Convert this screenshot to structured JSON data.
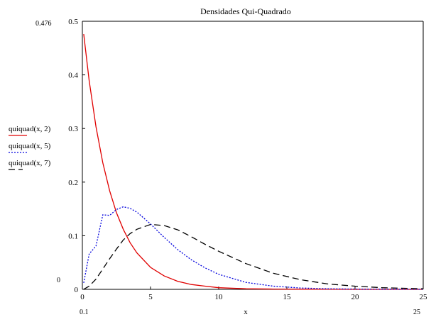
{
  "chart_data": {
    "type": "line",
    "title": "Densidades Qui-Quadrado",
    "xlabel": "x",
    "ylabel": "",
    "xlim": [
      0,
      25
    ],
    "ylim": [
      0,
      0.5
    ],
    "x_ticks": [
      0,
      5,
      10,
      15,
      20,
      25
    ],
    "y_ticks": [
      0,
      0.1,
      0.2,
      0.3,
      0.4,
      0.5
    ],
    "range_annotations": {
      "y_max": "0.476",
      "y_min": "0",
      "x_min": "0.1",
      "x_max": "25"
    },
    "grid": false,
    "legend_position": "left",
    "series": [
      {
        "name": "quiquad(x, 2)",
        "color": "#e00000",
        "dash": "solid",
        "df": 2,
        "x": [
          0.1,
          0.5,
          1,
          1.5,
          2,
          2.5,
          3,
          3.5,
          4,
          5,
          6,
          7,
          8,
          9,
          10,
          12,
          14,
          16,
          18,
          20,
          22,
          25
        ],
        "y": [
          0.476,
          0.389,
          0.303,
          0.236,
          0.184,
          0.143,
          0.112,
          0.087,
          0.068,
          0.041,
          0.025,
          0.015,
          0.009,
          0.006,
          0.003,
          0.001,
          0.0005,
          0.0002,
          0.0001,
          0.0,
          0.0,
          0.0
        ]
      },
      {
        "name": "quiquad(x, 5)",
        "color": "#0000dd",
        "dash": "dotted",
        "df": 5,
        "x": [
          0.1,
          0.5,
          1,
          1.5,
          2,
          2.5,
          3,
          3.5,
          4,
          5,
          6,
          7,
          8,
          9,
          10,
          12,
          14,
          16,
          18,
          20,
          22,
          25
        ],
        "y": [
          0.012,
          0.066,
          0.081,
          0.139,
          0.138,
          0.149,
          0.154,
          0.151,
          0.144,
          0.122,
          0.097,
          0.074,
          0.055,
          0.04,
          0.028,
          0.013,
          0.006,
          0.0025,
          0.0011,
          0.0005,
          0.0002,
          0.0001
        ]
      },
      {
        "name": "quiquad(x, 7)",
        "color": "#000000",
        "dash": "dashed",
        "df": 7,
        "x": [
          0.1,
          0.5,
          1,
          1.5,
          2,
          2.5,
          3,
          3.5,
          4,
          5,
          6,
          7,
          8,
          9,
          10,
          12,
          14,
          16,
          18,
          20,
          22,
          25
        ],
        "y": [
          0.0001,
          0.006,
          0.019,
          0.038,
          0.057,
          0.075,
          0.092,
          0.104,
          0.112,
          0.121,
          0.119,
          0.111,
          0.098,
          0.084,
          0.071,
          0.048,
          0.03,
          0.018,
          0.01,
          0.006,
          0.003,
          0.001
        ]
      }
    ]
  }
}
